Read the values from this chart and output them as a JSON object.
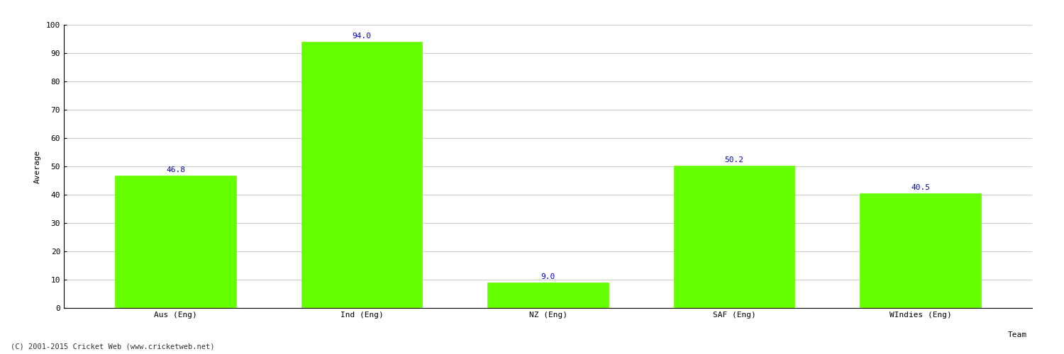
{
  "title": "",
  "categories": [
    "Aus (Eng)",
    "Ind (Eng)",
    "NZ (Eng)",
    "SAF (Eng)",
    "WIndies (Eng)"
  ],
  "values": [
    46.8,
    94.0,
    9.0,
    50.2,
    40.5
  ],
  "bar_color": "#66ff00",
  "bar_edge_color": "#66ff00",
  "label_color": "#0000cc",
  "xlabel": "Team",
  "ylabel": "Average",
  "ylim": [
    0,
    100
  ],
  "yticks": [
    0,
    10,
    20,
    30,
    40,
    50,
    60,
    70,
    80,
    90,
    100
  ],
  "grid_color": "#cccccc",
  "background_color": "#ffffff",
  "axis_label_fontsize": 8,
  "tick_label_fontsize": 8,
  "value_label_fontsize": 8,
  "footer_text": "(C) 2001-2015 Cricket Web (www.cricketweb.net)",
  "footer_fontsize": 7.5
}
